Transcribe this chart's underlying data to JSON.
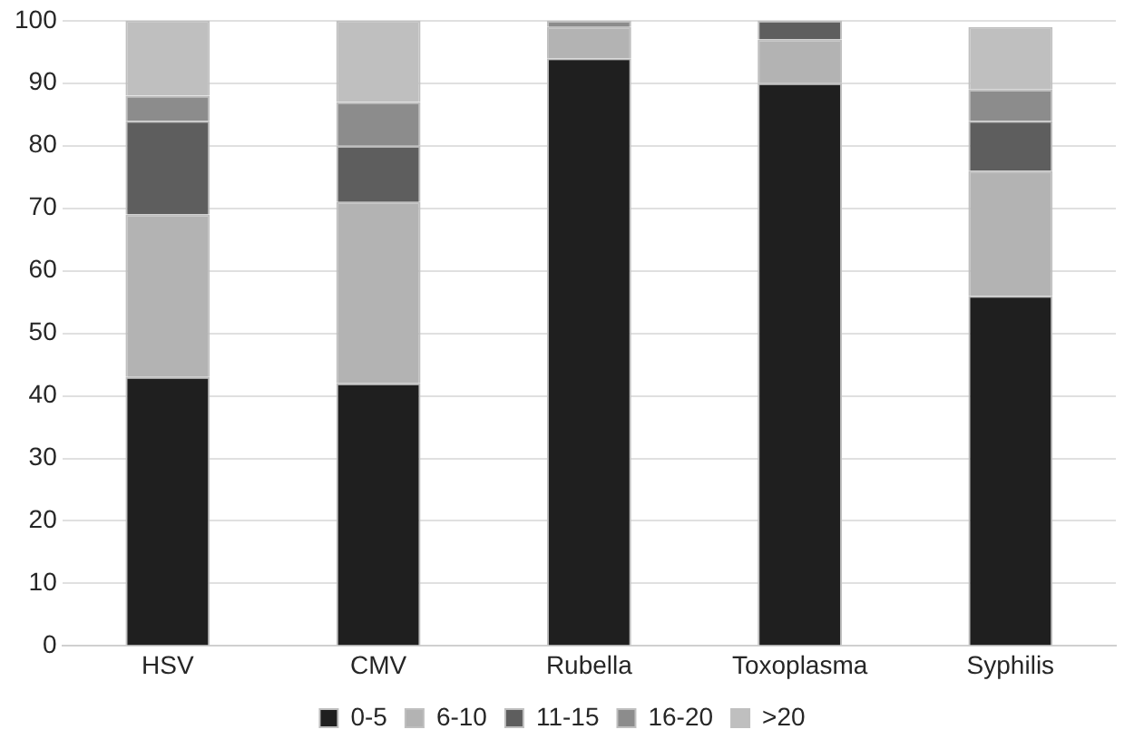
{
  "chart_data": {
    "type": "bar",
    "stacked": true,
    "categories": [
      "HSV",
      "CMV",
      "Rubella",
      "Toxoplasma",
      "Syphilis"
    ],
    "series": [
      {
        "name": "0-5",
        "color": "#1f1f1f",
        "values": [
          43,
          42,
          94,
          90,
          56
        ]
      },
      {
        "name": "6-10",
        "color": "#b3b3b3",
        "values": [
          26,
          29,
          5,
          7,
          20
        ]
      },
      {
        "name": "11-15",
        "color": "#5e5e5e",
        "values": [
          15,
          9,
          0,
          3,
          8
        ]
      },
      {
        "name": "16-20",
        "color": "#8c8c8c",
        "values": [
          4,
          7,
          1,
          0,
          5
        ]
      },
      {
        "name": ">20",
        "color": "#bfbfbf",
        "values": [
          12,
          13,
          0,
          0,
          10
        ]
      }
    ],
    "ylim": [
      0,
      100
    ],
    "yticks": [
      0,
      10,
      20,
      30,
      40,
      50,
      60,
      70,
      80,
      90,
      100
    ],
    "grid": "y",
    "legend": "bottom"
  }
}
